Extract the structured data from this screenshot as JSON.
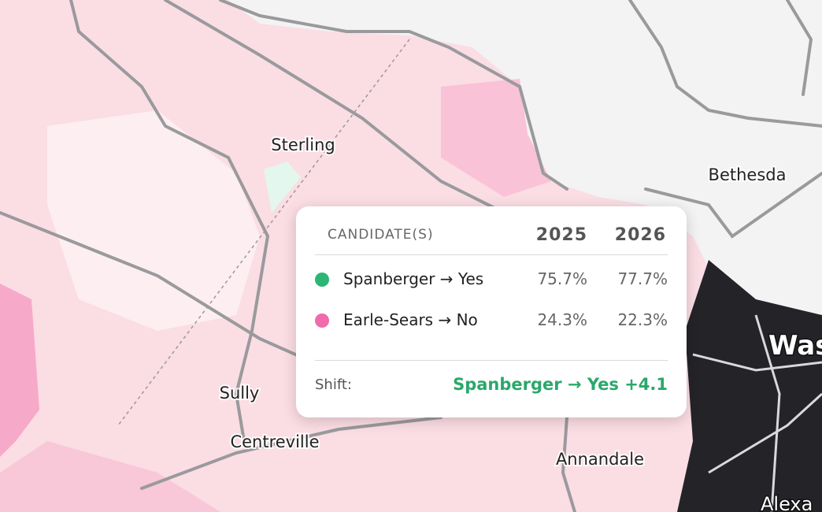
{
  "map": {
    "places": [
      {
        "label": "Sterling"
      },
      {
        "label": "Bethesda"
      },
      {
        "label": "Sully"
      },
      {
        "label": "Centreville"
      },
      {
        "label": "Annandale"
      },
      {
        "label": "Was"
      },
      {
        "label": "Alexa"
      }
    ]
  },
  "tooltip": {
    "header": [
      "CANDIDATE(S)",
      "2025",
      "2026"
    ],
    "rows": [
      {
        "candidate": "Spanberger → Yes",
        "color": "#2bb673",
        "values": [
          "75.7%",
          "77.7%"
        ]
      },
      {
        "candidate": "Earle-Sears → No",
        "color": "#f06bab",
        "values": [
          "24.3%",
          "22.3%"
        ]
      }
    ],
    "shift": {
      "label": "Shift:",
      "value": "Spanberger → Yes +4.1",
      "color": "#2aa86b"
    }
  }
}
